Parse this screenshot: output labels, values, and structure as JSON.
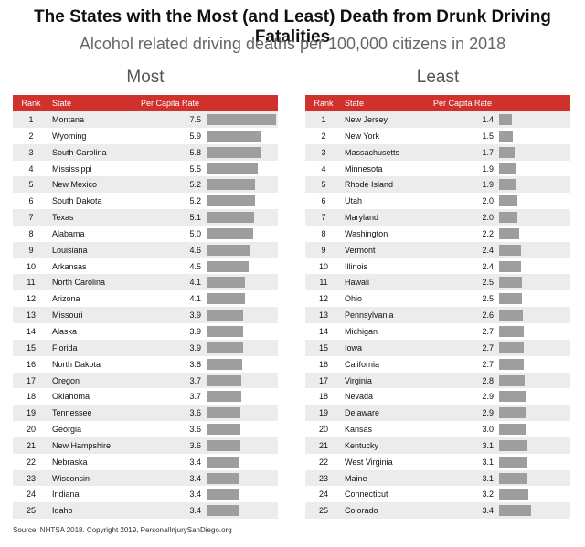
{
  "title": "The States with the Most (and Least) Death from Drunk Driving Fatalities",
  "subtitle": "Alcohol related driving deaths per 100,000 citizens in 2018",
  "source": "Source: NHTSA 2018. Copyright 2019, PersonalInjurySanDiego.org",
  "colors": {
    "header": "#d0312d",
    "bar": "#9e9e9e",
    "stripe": "#ececec"
  },
  "chart_data": [
    {
      "type": "table",
      "title": "Most",
      "columns": [
        "Rank",
        "State",
        "Per Capita Rate"
      ],
      "rows": [
        {
          "rank": "1",
          "state": "Montana",
          "rate": "7.5",
          "value": 7.5
        },
        {
          "rank": "2",
          "state": "Wyoming",
          "rate": "5.9",
          "value": 5.9
        },
        {
          "rank": "3",
          "state": "South Carolina",
          "rate": "5.8",
          "value": 5.8
        },
        {
          "rank": "4",
          "state": "Mississippi",
          "rate": "5.5",
          "value": 5.5
        },
        {
          "rank": "5",
          "state": "New Mexico",
          "rate": "5.2",
          "value": 5.2
        },
        {
          "rank": "6",
          "state": "South Dakota",
          "rate": "5.2",
          "value": 5.2
        },
        {
          "rank": "7",
          "state": "Texas",
          "rate": "5.1",
          "value": 5.1
        },
        {
          "rank": "8",
          "state": "Alabama",
          "rate": "5.0",
          "value": 5.0
        },
        {
          "rank": "9",
          "state": "Louisiana",
          "rate": "4.6",
          "value": 4.6
        },
        {
          "rank": "10",
          "state": "Arkansas",
          "rate": "4.5",
          "value": 4.5
        },
        {
          "rank": "11",
          "state": "North Carolina",
          "rate": "4.1",
          "value": 4.1
        },
        {
          "rank": "12",
          "state": "Arizona",
          "rate": "4.1",
          "value": 4.1
        },
        {
          "rank": "13",
          "state": "Missouri",
          "rate": "3.9",
          "value": 3.9
        },
        {
          "rank": "14",
          "state": "Alaska",
          "rate": "3.9",
          "value": 3.9
        },
        {
          "rank": "15",
          "state": "Florida",
          "rate": "3.9",
          "value": 3.9
        },
        {
          "rank": "16",
          "state": "North Dakota",
          "rate": "3.8",
          "value": 3.8
        },
        {
          "rank": "17",
          "state": "Oregon",
          "rate": "3.7",
          "value": 3.7
        },
        {
          "rank": "18",
          "state": "Oklahoma",
          "rate": "3.7",
          "value": 3.7
        },
        {
          "rank": "19",
          "state": "Tennessee",
          "rate": "3.6",
          "value": 3.6
        },
        {
          "rank": "20",
          "state": "Georgia",
          "rate": "3.6",
          "value": 3.6
        },
        {
          "rank": "21",
          "state": "New Hampshire",
          "rate": "3.6",
          "value": 3.6
        },
        {
          "rank": "22",
          "state": "Nebraska",
          "rate": "3.4",
          "value": 3.4
        },
        {
          "rank": "23",
          "state": "Wisconsin",
          "rate": "3.4",
          "value": 3.4
        },
        {
          "rank": "24",
          "state": "Indiana",
          "rate": "3.4",
          "value": 3.4
        },
        {
          "rank": "25",
          "state": "Idaho",
          "rate": "3.4",
          "value": 3.4
        }
      ]
    },
    {
      "type": "table",
      "title": "Least",
      "columns": [
        "Rank",
        "State",
        "Per Capita Rate"
      ],
      "rows": [
        {
          "rank": "1",
          "state": "New Jersey",
          "rate": "1.4",
          "value": 1.4
        },
        {
          "rank": "2",
          "state": "New York",
          "rate": "1.5",
          "value": 1.5
        },
        {
          "rank": "3",
          "state": "Massachusetts",
          "rate": "1.7",
          "value": 1.7
        },
        {
          "rank": "4",
          "state": "Minnesota",
          "rate": "1.9",
          "value": 1.9
        },
        {
          "rank": "5",
          "state": "Rhode Island",
          "rate": "1.9",
          "value": 1.9
        },
        {
          "rank": "6",
          "state": "Utah",
          "rate": "2.0",
          "value": 2.0
        },
        {
          "rank": "7",
          "state": "Maryland",
          "rate": "2.0",
          "value": 2.0
        },
        {
          "rank": "8",
          "state": "Washington",
          "rate": "2.2",
          "value": 2.2
        },
        {
          "rank": "9",
          "state": "Vermont",
          "rate": "2.4",
          "value": 2.4
        },
        {
          "rank": "10",
          "state": "Illinois",
          "rate": "2.4",
          "value": 2.4
        },
        {
          "rank": "11",
          "state": "Hawaii",
          "rate": "2.5",
          "value": 2.5
        },
        {
          "rank": "12",
          "state": "Ohio",
          "rate": "2.5",
          "value": 2.5
        },
        {
          "rank": "13",
          "state": "Pennsylvania",
          "rate": "2.6",
          "value": 2.6
        },
        {
          "rank": "14",
          "state": "Michigan",
          "rate": "2.7",
          "value": 2.7
        },
        {
          "rank": "15",
          "state": "Iowa",
          "rate": "2.7",
          "value": 2.7
        },
        {
          "rank": "16",
          "state": "California",
          "rate": "2.7",
          "value": 2.7
        },
        {
          "rank": "17",
          "state": "Virginia",
          "rate": "2.8",
          "value": 2.8
        },
        {
          "rank": "18",
          "state": "Nevada",
          "rate": "2.9",
          "value": 2.9
        },
        {
          "rank": "19",
          "state": "Delaware",
          "rate": "2.9",
          "value": 2.9
        },
        {
          "rank": "20",
          "state": "Kansas",
          "rate": "3.0",
          "value": 3.0
        },
        {
          "rank": "21",
          "state": "Kentucky",
          "rate": "3.1",
          "value": 3.1
        },
        {
          "rank": "22",
          "state": "West Virginia",
          "rate": "3.1",
          "value": 3.1
        },
        {
          "rank": "23",
          "state": "Maine",
          "rate": "3.1",
          "value": 3.1
        },
        {
          "rank": "24",
          "state": "Connecticut",
          "rate": "3.2",
          "value": 3.2
        },
        {
          "rank": "25",
          "state": "Colorado",
          "rate": "3.4",
          "value": 3.4
        }
      ]
    }
  ]
}
